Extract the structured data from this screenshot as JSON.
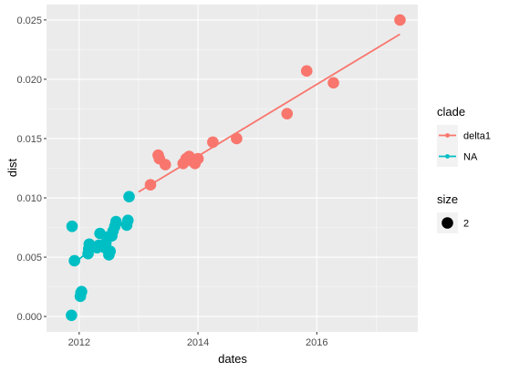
{
  "chart_data": {
    "type": "scatter",
    "xlabel": "dates",
    "ylabel": "dist",
    "xlim": [
      2011.45,
      2017.7
    ],
    "ylim": [
      -0.0013,
      0.0263
    ],
    "x_ticks": [
      2012,
      2014,
      2016
    ],
    "y_ticks": [
      0.0,
      0.005,
      0.01,
      0.015,
      0.02,
      0.025
    ],
    "x_tick_labels": [
      "2012",
      "2014",
      "2016"
    ],
    "y_tick_labels": [
      "0.000",
      "0.005",
      "0.010",
      "0.015",
      "0.020",
      "0.025"
    ],
    "grid": true,
    "legend_position": "right",
    "legend_color_title": "clade",
    "legend_size_title": "size",
    "legend_size_label": "2",
    "panel_background": "#EBEBEB",
    "series": [
      {
        "name": "delta1",
        "color": "#F8766D",
        "points": [
          [
            2013.2,
            0.0111
          ],
          [
            2013.33,
            0.0136
          ],
          [
            2013.35,
            0.0133
          ],
          [
            2013.45,
            0.0128
          ],
          [
            2013.75,
            0.0129
          ],
          [
            2013.8,
            0.0133
          ],
          [
            2013.85,
            0.0135
          ],
          [
            2013.9,
            0.0131
          ],
          [
            2013.95,
            0.0129
          ],
          [
            2014.0,
            0.0133
          ],
          [
            2014.25,
            0.0147
          ],
          [
            2014.65,
            0.015
          ],
          [
            2015.5,
            0.0171
          ],
          [
            2015.83,
            0.0207
          ],
          [
            2016.28,
            0.0197
          ],
          [
            2017.4,
            0.025
          ]
        ],
        "trend_line": [
          [
            2013.0,
            0.0105
          ],
          [
            2017.4,
            0.0238
          ]
        ]
      },
      {
        "name": "NA",
        "color": "#00BFC4",
        "points": [
          [
            2011.87,
            0.0001
          ],
          [
            2011.88,
            0.0076
          ],
          [
            2011.92,
            0.0047
          ],
          [
            2012.02,
            0.0017
          ],
          [
            2012.03,
            0.002
          ],
          [
            2012.04,
            0.0021
          ],
          [
            2012.15,
            0.0053
          ],
          [
            2012.16,
            0.0057
          ],
          [
            2012.17,
            0.0061
          ],
          [
            2012.3,
            0.0058
          ],
          [
            2012.33,
            0.006
          ],
          [
            2012.35,
            0.007
          ],
          [
            2012.43,
            0.0058
          ],
          [
            2012.45,
            0.0062
          ],
          [
            2012.47,
            0.0067
          ],
          [
            2012.5,
            0.0052
          ],
          [
            2012.52,
            0.0055
          ],
          [
            2012.55,
            0.0068
          ],
          [
            2012.57,
            0.0072
          ],
          [
            2012.6,
            0.0076
          ],
          [
            2012.62,
            0.008
          ],
          [
            2012.8,
            0.0077
          ],
          [
            2012.82,
            0.0081
          ],
          [
            2012.84,
            0.0101
          ]
        ],
        "trend_line": [
          [
            2011.87,
            0.0043
          ],
          [
            2012.84,
            0.0083
          ]
        ]
      }
    ]
  }
}
